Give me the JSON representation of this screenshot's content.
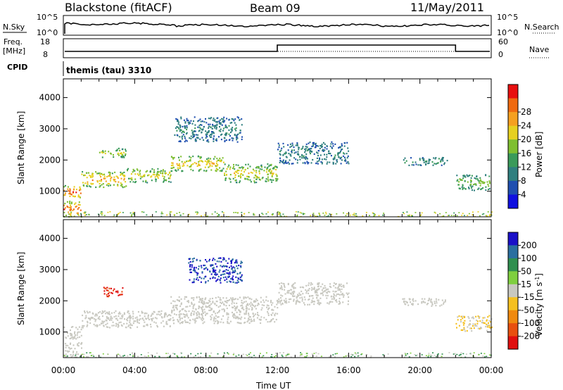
{
  "header": {
    "title": "Blackstone (fitACF)",
    "beam": "Beam 09",
    "date": "11/May/2011"
  },
  "strips": {
    "nsky_label": "N.Sky",
    "nsky_ticks": [
      "10^5",
      "10^0"
    ],
    "nsearch_label": "N.Search",
    "nsearch_ticks": [
      "10^5",
      "10^0"
    ],
    "freq_label": "Freq.",
    "freq_unit": "[MHz]",
    "freq_ticks": [
      "18",
      "8"
    ],
    "nave_label": "Nave",
    "nave_ticks": [
      "60",
      "0"
    ],
    "cpid_label": "CPID",
    "cpid_value": "themis (tau) 3310"
  },
  "chart_data": [
    {
      "type": "heatmap",
      "name": "power",
      "xlabel": "Time UT",
      "ylabel": "Slant Range [km]",
      "xlim": [
        0,
        24
      ],
      "ylim": [
        180,
        4600
      ],
      "yticks": [
        "1000",
        "2000",
        "3000",
        "4000"
      ],
      "xticks": [
        "00:00",
        "04:00",
        "08:00",
        "12:00",
        "16:00",
        "20:00",
        "00:00"
      ],
      "colorbar": {
        "label": "Power [dB]",
        "ticks": [
          "4",
          "8",
          "12",
          "16",
          "20",
          "24",
          "28"
        ],
        "colors": [
          "#1010e0",
          "#1f4fb0",
          "#2f7f7f",
          "#3a9a5a",
          "#7fbf30",
          "#e6d020",
          "#f5a020",
          "#f06a10",
          "#e81010"
        ]
      },
      "regions": [
        {
          "t0": 0.0,
          "t1": 1.0,
          "r0": 800,
          "r1": 1200,
          "value": 24
        },
        {
          "t0": 1.0,
          "t1": 3.5,
          "r0": 1150,
          "r1": 1650,
          "value": 20
        },
        {
          "t0": 3.5,
          "t1": 6.0,
          "r0": 1300,
          "r1": 1750,
          "value": 16
        },
        {
          "t0": 6.0,
          "t1": 9.0,
          "r0": 1650,
          "r1": 2150,
          "value": 18
        },
        {
          "t0": 9.0,
          "t1": 12.0,
          "r0": 1300,
          "r1": 1900,
          "value": 16
        },
        {
          "t0": 2.0,
          "t1": 3.5,
          "r0": 2100,
          "r1": 2400,
          "value": 14
        },
        {
          "t0": 6.2,
          "t1": 10.0,
          "r0": 2600,
          "r1": 3400,
          "value": 6
        },
        {
          "t0": 12.0,
          "t1": 16.0,
          "r0": 1900,
          "r1": 2600,
          "value": 6
        },
        {
          "t0": 19.0,
          "t1": 21.5,
          "r0": 1850,
          "r1": 2100,
          "value": 8
        },
        {
          "t0": 22.0,
          "t1": 24.0,
          "r0": 1050,
          "r1": 1550,
          "value": 12
        },
        {
          "t0": 0.0,
          "t1": 1.0,
          "r0": 200,
          "r1": 700,
          "value": 24
        }
      ]
    },
    {
      "type": "heatmap",
      "name": "velocity",
      "xlabel": "Time UT",
      "ylabel": "Slant Range [km]",
      "xlim": [
        0,
        24
      ],
      "ylim": [
        180,
        4600
      ],
      "yticks": [
        "1000",
        "2000",
        "3000",
        "4000"
      ],
      "xticks": [
        "00:00",
        "04:00",
        "08:00",
        "12:00",
        "16:00",
        "20:00",
        "00:00"
      ],
      "colorbar": {
        "label": "Velocity [m s",
        "label_sup": "-1",
        "label_end": "]",
        "ticks": [
          "200",
          "100",
          "50",
          "15",
          "-15",
          "-50",
          "-100",
          "-200"
        ],
        "colors": [
          "#1a10c8",
          "#2a6fa0",
          "#2f8f4f",
          "#7fcf3f",
          "#c8c8c0",
          "#f5c020",
          "#f08a10",
          "#e85010",
          "#e01010"
        ]
      },
      "regions": [
        {
          "t0": 0.0,
          "t1": 1.0,
          "r0": 800,
          "r1": 1200,
          "value": 0
        },
        {
          "t0": 1.0,
          "t1": 6.0,
          "r0": 1150,
          "r1": 1700,
          "value": 0
        },
        {
          "t0": 6.0,
          "t1": 12.0,
          "r0": 1300,
          "r1": 2150,
          "value": 0
        },
        {
          "t0": 2.2,
          "t1": 3.3,
          "r0": 2150,
          "r1": 2450,
          "value": -200
        },
        {
          "t0": 7.0,
          "t1": 10.0,
          "r0": 2600,
          "r1": 3400,
          "value": 200
        },
        {
          "t0": 12.0,
          "t1": 16.0,
          "r0": 1900,
          "r1": 2600,
          "value": 0
        },
        {
          "t0": 19.0,
          "t1": 21.5,
          "r0": 1850,
          "r1": 2100,
          "value": 0
        },
        {
          "t0": 22.0,
          "t1": 24.0,
          "r0": 1050,
          "r1": 1550,
          "value": -15
        },
        {
          "t0": 0.0,
          "t1": 1.0,
          "r0": 200,
          "r1": 700,
          "value": 0
        }
      ]
    }
  ]
}
